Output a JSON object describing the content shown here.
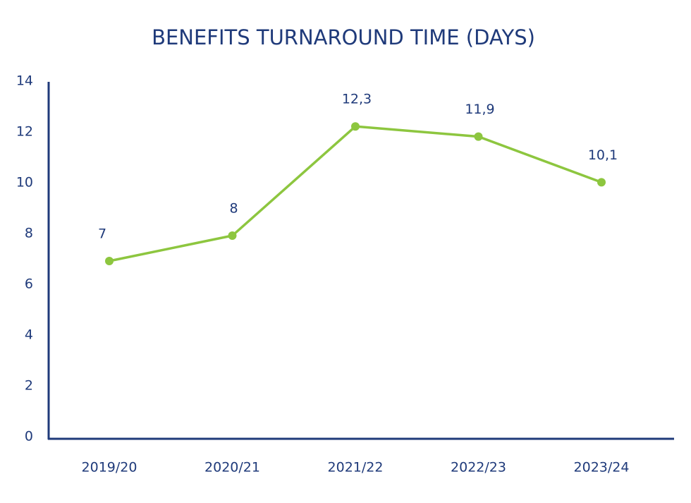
{
  "chart_data": {
    "type": "line",
    "title": "BENEFITS TURNAROUND TIME (DAYS)",
    "categories": [
      "2019/20",
      "2020/21",
      "2021/22",
      "2022/23",
      "2023/24"
    ],
    "series": [
      {
        "color": "#8dc63f",
        "values": [
          7,
          8,
          12.3,
          11.9,
          10.1
        ],
        "value_labels": [
          "7",
          "8",
          "12,3",
          "11,9",
          "10,1"
        ]
      }
    ],
    "ylim": [
      0,
      14
    ],
    "yticks": [
      0,
      2,
      4,
      6,
      8,
      10,
      12,
      14
    ],
    "grid": false
  }
}
